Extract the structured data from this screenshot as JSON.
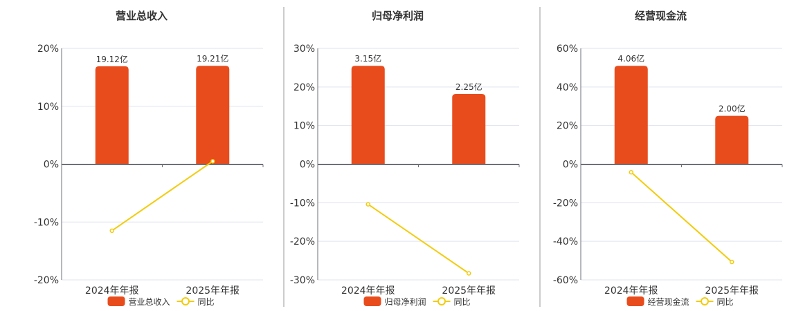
{
  "colors": {
    "bar": "#e84c1d",
    "line": "#f2cc0c",
    "grid": "#dfe3ee",
    "axis": "#6e7079",
    "divider": "#999999"
  },
  "chart_data": [
    {
      "type": "bar+line",
      "title": "营业总收入",
      "categories": [
        "2024年年报",
        "2025年年报"
      ],
      "bar_series": {
        "name": "营业总收入",
        "values": [
          19.12,
          19.21
        ],
        "labels": [
          "19.12亿",
          "19.21亿"
        ]
      },
      "line_series": {
        "name": "同比",
        "values": [
          -11.5,
          0.5
        ]
      },
      "y_ticks": [
        "20%",
        "10%",
        "0%",
        "-10%",
        "-20%"
      ],
      "ylim": [
        -20,
        20
      ],
      "grid": true,
      "legend": "bottom"
    },
    {
      "type": "bar+line",
      "title": "归母净利润",
      "categories": [
        "2024年年报",
        "2025年年报"
      ],
      "bar_series": {
        "name": "归母净利润",
        "values": [
          3.15,
          2.25
        ],
        "labels": [
          "3.15亿",
          "2.25亿"
        ]
      },
      "line_series": {
        "name": "同比",
        "values": [
          -10.4,
          -28.3
        ]
      },
      "y_ticks": [
        "30%",
        "20%",
        "10%",
        "0%",
        "-10%",
        "-20%",
        "-30%"
      ],
      "ylim": [
        -30,
        30
      ],
      "grid": true,
      "legend": "bottom"
    },
    {
      "type": "bar+line",
      "title": "经营现金流",
      "categories": [
        "2024年年报",
        "2025年年报"
      ],
      "bar_series": {
        "name": "经营现金流",
        "values": [
          4.06,
          2.0
        ],
        "labels": [
          "4.06亿",
          "2.00亿"
        ]
      },
      "line_series": {
        "name": "同比",
        "values": [
          -4.2,
          -50.7
        ]
      },
      "y_ticks": [
        "60%",
        "40%",
        "20%",
        "0%",
        "-20%",
        "-40%",
        "-60%"
      ],
      "ylim": [
        -60,
        60
      ],
      "grid": true,
      "legend": "bottom"
    }
  ]
}
